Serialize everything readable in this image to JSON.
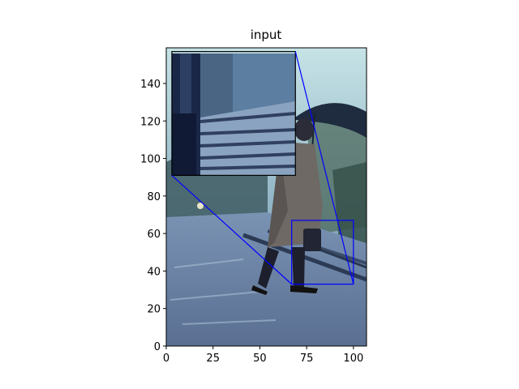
{
  "chart_data": {
    "type": "image",
    "title": "input",
    "xlabel": "",
    "ylabel": "",
    "xlim": [
      0,
      107
    ],
    "ylim": [
      0,
      159
    ],
    "x_ticks": [
      0,
      25,
      50,
      75,
      100
    ],
    "y_ticks": [
      0,
      20,
      40,
      60,
      80,
      100,
      120,
      140
    ],
    "x_tick_labels": [
      "0",
      "25",
      "50",
      "75",
      "100"
    ],
    "y_tick_labels": [
      "0",
      "20",
      "40",
      "60",
      "80",
      "100",
      "120",
      "140"
    ],
    "zoom_region": {
      "x": [
        67,
        100
      ],
      "y": [
        33,
        67
      ]
    },
    "inset_extent": {
      "x": [
        3,
        69
      ],
      "y": [
        91,
        157
      ]
    },
    "indicator_color": "#0000ff",
    "scene_description_colors": {
      "sky": "#b9d6df",
      "platform": "#6f86a6",
      "coat": "#6b6663",
      "trees": "#3c5a4e"
    }
  }
}
